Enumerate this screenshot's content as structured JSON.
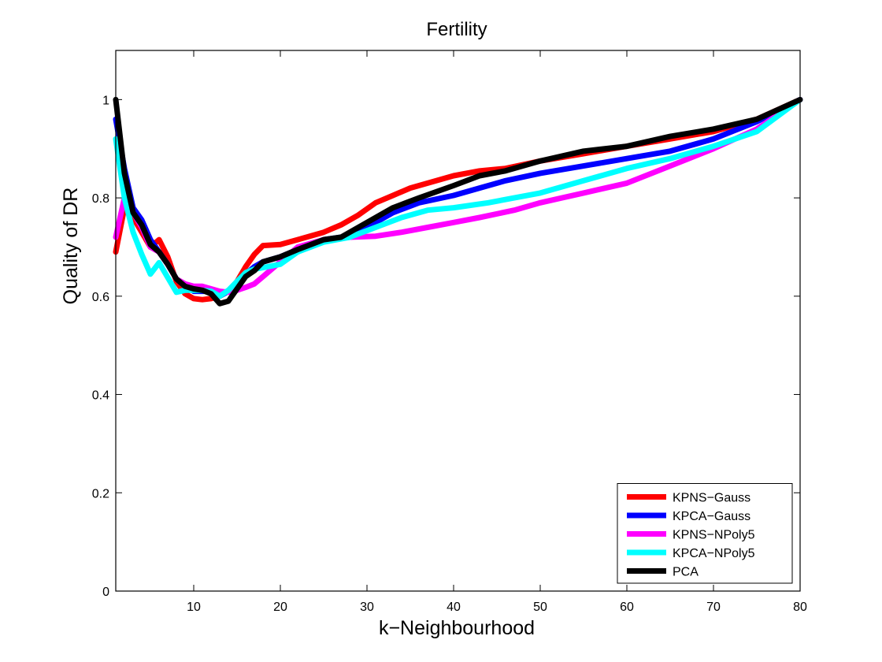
{
  "chart_data": {
    "type": "line",
    "title": "Fertility",
    "xlabel": "k−Neighbourhood",
    "ylabel": "Quality of DR",
    "xlim": [
      1,
      80
    ],
    "ylim": [
      0,
      1.1
    ],
    "x_ticks": [
      10,
      20,
      30,
      40,
      50,
      60,
      70,
      80
    ],
    "y_ticks": [
      0,
      0.2,
      0.4,
      0.6,
      0.8,
      1
    ],
    "y_tick_labels": [
      "0",
      "0.2",
      "0.4",
      "0.6",
      "0.8",
      "1"
    ],
    "grid": false,
    "legend_position": "bottom-right",
    "series": [
      {
        "name": "KPNS−Gauss",
        "color": "#ff0000",
        "x": [
          1,
          2,
          3,
          4,
          5,
          6,
          7,
          8,
          9,
          10,
          11,
          12,
          13,
          14,
          15,
          16,
          17,
          18,
          20,
          22,
          25,
          27,
          29,
          31,
          33,
          35,
          37,
          40,
          43,
          46,
          50,
          55,
          60,
          65,
          70,
          75,
          80
        ],
        "y": [
          0.69,
          0.78,
          0.76,
          0.73,
          0.7,
          0.715,
          0.68,
          0.63,
          0.605,
          0.595,
          0.593,
          0.595,
          0.6,
          0.61,
          0.63,
          0.66,
          0.685,
          0.703,
          0.705,
          0.715,
          0.73,
          0.745,
          0.765,
          0.79,
          0.805,
          0.82,
          0.83,
          0.845,
          0.855,
          0.86,
          0.875,
          0.89,
          0.905,
          0.92,
          0.935,
          0.96,
          1.0
        ]
      },
      {
        "name": "KPCA−Gauss",
        "color": "#0000ff",
        "x": [
          1,
          2,
          3,
          4,
          5,
          6,
          7,
          8,
          9,
          10,
          11,
          12,
          13,
          14,
          15,
          16,
          17,
          18,
          20,
          22,
          25,
          27,
          30,
          33,
          36,
          40,
          43,
          46,
          50,
          55,
          60,
          65,
          70,
          75,
          80
        ],
        "y": [
          0.96,
          0.86,
          0.78,
          0.755,
          0.715,
          0.69,
          0.665,
          0.635,
          0.62,
          0.61,
          0.61,
          0.61,
          0.6,
          0.61,
          0.625,
          0.645,
          0.66,
          0.67,
          0.68,
          0.695,
          0.715,
          0.72,
          0.74,
          0.77,
          0.79,
          0.805,
          0.82,
          0.835,
          0.85,
          0.865,
          0.88,
          0.895,
          0.92,
          0.955,
          1.0
        ]
      },
      {
        "name": "KPNS−NPoly5",
        "color": "#ff00ff",
        "x": [
          1,
          2,
          3,
          4,
          5,
          6,
          7,
          8,
          9,
          10,
          11,
          12,
          13,
          14,
          15,
          16,
          17,
          18,
          20,
          22,
          25,
          28,
          31,
          34,
          37,
          40,
          43,
          47,
          50,
          55,
          60,
          65,
          70,
          75,
          80
        ],
        "y": [
          0.72,
          0.8,
          0.77,
          0.74,
          0.7,
          0.69,
          0.665,
          0.635,
          0.625,
          0.62,
          0.62,
          0.615,
          0.61,
          0.608,
          0.612,
          0.618,
          0.625,
          0.64,
          0.67,
          0.7,
          0.715,
          0.72,
          0.722,
          0.73,
          0.74,
          0.75,
          0.76,
          0.775,
          0.79,
          0.81,
          0.83,
          0.865,
          0.9,
          0.94,
          1.0
        ]
      },
      {
        "name": "KPCA−NPoly5",
        "color": "#00ffff",
        "x": [
          1,
          2,
          3,
          4,
          5,
          6,
          7,
          8,
          9,
          10,
          11,
          12,
          13,
          14,
          15,
          16,
          17,
          18,
          20,
          22,
          25,
          28,
          31,
          34,
          37,
          40,
          44,
          47,
          50,
          55,
          60,
          65,
          70,
          75,
          80
        ],
        "y": [
          0.92,
          0.8,
          0.73,
          0.685,
          0.645,
          0.668,
          0.638,
          0.608,
          0.612,
          0.612,
          0.612,
          0.61,
          0.6,
          0.612,
          0.63,
          0.648,
          0.655,
          0.658,
          0.665,
          0.69,
          0.71,
          0.72,
          0.74,
          0.76,
          0.775,
          0.78,
          0.79,
          0.8,
          0.81,
          0.835,
          0.86,
          0.88,
          0.905,
          0.935,
          1.0
        ]
      },
      {
        "name": "PCA",
        "color": "#000000",
        "x": [
          1,
          2,
          3,
          4,
          5,
          6,
          7,
          8,
          9,
          10,
          11,
          12,
          13,
          14,
          15,
          16,
          17,
          18,
          20,
          22,
          25,
          27,
          30,
          33,
          36,
          40,
          43,
          46,
          50,
          55,
          60,
          65,
          70,
          75,
          80
        ],
        "y": [
          1.0,
          0.85,
          0.77,
          0.745,
          0.705,
          0.69,
          0.665,
          0.635,
          0.62,
          0.615,
          0.612,
          0.605,
          0.585,
          0.59,
          0.615,
          0.64,
          0.652,
          0.67,
          0.68,
          0.695,
          0.715,
          0.72,
          0.75,
          0.78,
          0.8,
          0.825,
          0.845,
          0.855,
          0.875,
          0.895,
          0.905,
          0.925,
          0.94,
          0.96,
          1.0
        ]
      }
    ]
  }
}
